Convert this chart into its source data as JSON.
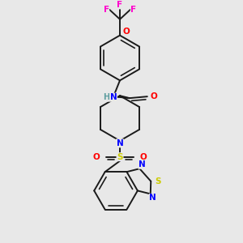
{
  "bg": "#e8e8e8",
  "lc": "#1a1a1a",
  "lw": 1.4,
  "F_color": "#ff00cc",
  "O_color": "#ff0000",
  "N_color": "#0000ff",
  "S_color": "#cccc00",
  "H_color": "#5f9ea0",
  "font_size": 7.5,
  "xlim": [
    0,
    300
  ],
  "ylim": [
    0,
    300
  ]
}
